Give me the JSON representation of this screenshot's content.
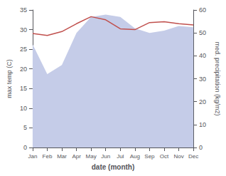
{
  "chart_data": {
    "type": "line",
    "xlabel": "date (month)",
    "ylabel": "max temp (C)",
    "y2label": "med. precipitation (kg/m2)",
    "categories": [
      "Jan",
      "Feb",
      "Mar",
      "Apr",
      "May",
      "Jun",
      "Jul",
      "Aug",
      "Sep",
      "Oct",
      "Nov",
      "Dec"
    ],
    "series": [
      {
        "type": "line",
        "color": "#c0504d",
        "values": [
          29.0,
          28.5,
          29.5,
          31.5,
          33.3,
          32.5,
          30.2,
          30.0,
          31.8,
          32.0,
          31.5,
          31.2
        ]
      },
      {
        "type": "area",
        "axis": "y2",
        "color": "#c5cce8",
        "values": [
          45.0,
          32.0,
          36.0,
          50.0,
          57.0,
          58.0,
          57.0,
          52.0,
          50.0,
          51.0,
          53.0,
          52.5
        ]
      }
    ],
    "ylim": [
      0,
      35
    ],
    "yticks": [
      0,
      5,
      10,
      15,
      20,
      25,
      30,
      35
    ],
    "y2lim": [
      0,
      60
    ],
    "y2ticks": [
      0,
      10,
      20,
      30,
      40,
      50,
      60
    ],
    "grid": false
  }
}
